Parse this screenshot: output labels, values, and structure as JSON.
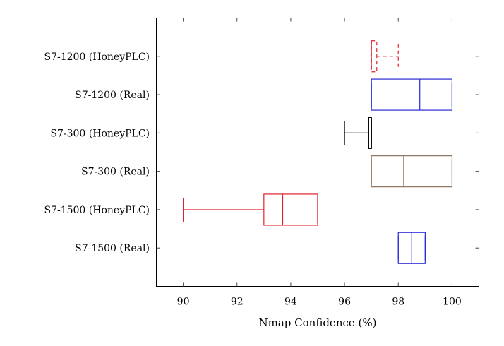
{
  "chart_data": {
    "type": "boxplot",
    "orientation": "horizontal",
    "title": "",
    "xlabel": "Nmap Confidence (%)",
    "ylabel": "",
    "xlim": [
      89,
      101
    ],
    "xticks": [
      90,
      92,
      94,
      96,
      98,
      100
    ],
    "grid": false,
    "categories": [
      {
        "label": "S7-1200 (HoneyPLC)",
        "min": 97,
        "q1": 97,
        "median": 97,
        "q3": 97.2,
        "max": 98,
        "color": "#e0202a",
        "dashed": true
      },
      {
        "label": "S7-1200 (Real)",
        "min": 97,
        "q1": 97,
        "median": 98.8,
        "q3": 100,
        "max": 100,
        "color": "#2a2ad8",
        "dashed": false
      },
      {
        "label": "S7-300 (HoneyPLC)",
        "min": 96,
        "q1": 96.9,
        "median": 97,
        "q3": 97,
        "max": 97,
        "color": "#000000",
        "dashed": false
      },
      {
        "label": "S7-300 (Real)",
        "min": 97,
        "q1": 97,
        "median": 98.2,
        "q3": 100,
        "max": 100,
        "color": "#8b7360",
        "dashed": false
      },
      {
        "label": "S7-1500 (HoneyPLC)",
        "min": 90,
        "q1": 93,
        "median": 93.7,
        "q3": 95,
        "max": 95,
        "color": "#e0202a",
        "dashed": false
      },
      {
        "label": "S7-1500 (Real)",
        "min": 98,
        "q1": 98,
        "median": 98.5,
        "q3": 99,
        "max": 99,
        "color": "#2a2ad8",
        "dashed": false
      }
    ]
  }
}
